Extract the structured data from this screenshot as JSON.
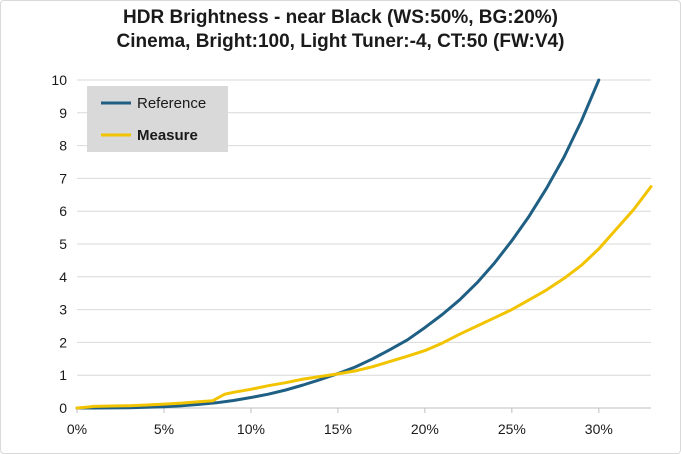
{
  "chart_data": {
    "type": "line",
    "title": "HDR Brightness - near Black (WS:50%, BG:20%)",
    "subtitle": "Cinema, Bright:100, Light Tuner:-4, CT:50 (FW:V4)",
    "xlabel": "",
    "ylabel": "",
    "xlim": [
      0,
      33
    ],
    "ylim": [
      0,
      10
    ],
    "x_ticks": [
      "0%",
      "5%",
      "10%",
      "15%",
      "20%",
      "25%",
      "30%"
    ],
    "x_tick_values": [
      0,
      5,
      10,
      15,
      20,
      25,
      30
    ],
    "y_ticks": [
      "0",
      "1",
      "2",
      "3",
      "4",
      "5",
      "6",
      "7",
      "8",
      "9",
      "10"
    ],
    "y_tick_values": [
      0,
      1,
      2,
      3,
      4,
      5,
      6,
      7,
      8,
      9,
      10
    ],
    "grid": "horizontal",
    "legend_position": "top-left",
    "series": [
      {
        "name": "Reference",
        "color": "#1f5f84",
        "x": [
          0,
          1,
          2,
          3,
          4,
          5,
          6,
          7,
          8,
          9,
          10,
          11,
          12,
          13,
          14,
          15,
          16,
          17,
          18,
          19,
          20,
          21,
          22,
          23,
          24,
          25,
          26,
          27,
          28,
          29,
          30
        ],
        "values": [
          0,
          0.001,
          0.004,
          0.01,
          0.022,
          0.04,
          0.07,
          0.11,
          0.16,
          0.23,
          0.32,
          0.42,
          0.55,
          0.7,
          0.87,
          1.05,
          1.25,
          1.5,
          1.78,
          2.08,
          2.45,
          2.85,
          3.3,
          3.82,
          4.42,
          5.1,
          5.85,
          6.7,
          7.65,
          8.75,
          10.0
        ]
      },
      {
        "name": "Measure",
        "color": "#f2c400",
        "x": [
          0,
          0.5,
          1,
          2,
          3,
          4,
          5,
          6,
          7,
          7.8,
          8,
          8.5,
          9,
          10,
          11,
          12,
          13,
          14,
          15,
          16,
          17,
          18,
          19,
          20,
          21,
          22,
          23,
          24,
          25,
          26,
          27,
          28,
          29,
          30,
          31,
          32,
          33
        ],
        "values": [
          0,
          0.02,
          0.05,
          0.06,
          0.07,
          0.09,
          0.12,
          0.15,
          0.19,
          0.22,
          0.28,
          0.42,
          0.48,
          0.57,
          0.68,
          0.77,
          0.88,
          0.96,
          1.04,
          1.13,
          1.26,
          1.42,
          1.58,
          1.75,
          1.98,
          2.25,
          2.5,
          2.75,
          3.0,
          3.3,
          3.6,
          3.95,
          4.35,
          4.85,
          5.45,
          6.05,
          6.75
        ]
      }
    ]
  }
}
